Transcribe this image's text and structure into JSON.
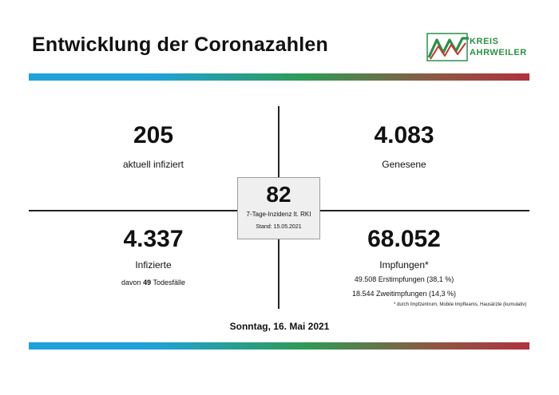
{
  "header": {
    "title": "Entwicklung der Coronazahlen",
    "logo": {
      "line1": "KREIS",
      "line2": "AHRWEILER",
      "icon": "ahrweiler-logo-icon"
    }
  },
  "colors": {
    "bar_start": "#1fa2d8",
    "bar_mid": "#2e9b55",
    "bar_end": "#b0323f",
    "logo_green": "#2e8f4a",
    "logo_red": "#c0392b",
    "box_bg": "#efefef"
  },
  "stats": {
    "active": {
      "value": "205",
      "label": "aktuell infiziert"
    },
    "recovered": {
      "value": "4.083",
      "label": "Genesene"
    },
    "infected": {
      "value": "4.337",
      "label": "Infizierte",
      "deaths_prefix": "davon",
      "deaths_value": "49",
      "deaths_suffix": "Todesfälle"
    },
    "vaccinations": {
      "value": "68.052",
      "label": "Impfungen*",
      "first": "49.508 Erstimpfungen (38,1 %)",
      "second": "18.544 Zweitimpfungen (14,3 %)",
      "footnote": "* durch Impfzentrum, Mobile Impfteams, Hausärzte (kumulativ)"
    }
  },
  "incidence": {
    "value": "82",
    "label": "7-Tage-Inzidenz lt. RKI",
    "stand": "Stand: 15.05.2021"
  },
  "date": "Sonntag, 16. Mai 2021"
}
